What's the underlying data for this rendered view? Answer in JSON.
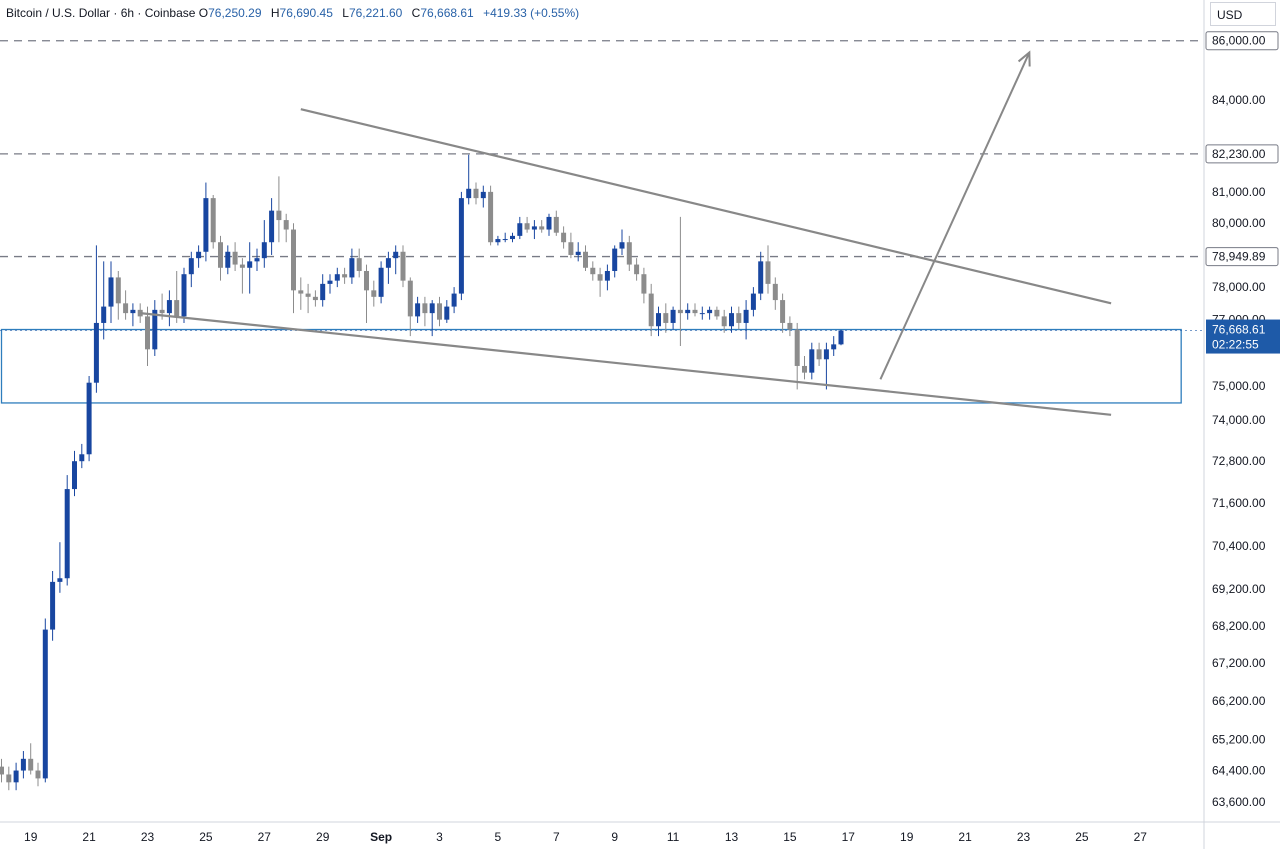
{
  "legend": {
    "symbol": "Bitcoin / U.S. Dollar · 6h · Coinbase",
    "open_label": "O",
    "open": "76,250.29",
    "high_label": "H",
    "high": "76,690.45",
    "low_label": "L",
    "low": "76,221.60",
    "close_label": "C",
    "close": "76,668.61",
    "change": "+419.33 (+0.55%)"
  },
  "currency": "USD",
  "colors": {
    "up": "#1846a0",
    "down": "#8c8c8c",
    "accent": "#1e5aa8",
    "pattern_line": "#888888",
    "zone_border": "#2e7dbd"
  },
  "chart_data": {
    "type": "candlestick",
    "title": "Bitcoin / U.S. Dollar · 6h · Coinbase",
    "y_scale": "log",
    "ylim": [
      63100,
      87400
    ],
    "x_domain": [
      18.0,
      28.2
    ],
    "x_ticks": [
      {
        "x": 19,
        "label": "19"
      },
      {
        "x": 21,
        "label": "21"
      },
      {
        "x": 23,
        "label": "23"
      },
      {
        "x": 25,
        "label": "25"
      },
      {
        "x": 27,
        "label": "27"
      },
      {
        "x": 29,
        "label": "29"
      },
      {
        "x": 31,
        "label": "Sep"
      },
      {
        "x": 33,
        "label": "3"
      },
      {
        "x": 35,
        "label": "5"
      },
      {
        "x": 37,
        "label": "7"
      },
      {
        "x": 39,
        "label": "9"
      },
      {
        "x": 41,
        "label": "11"
      },
      {
        "x": 43,
        "label": "13"
      },
      {
        "x": 45,
        "label": "15"
      },
      {
        "x": 47,
        "label": "17"
      },
      {
        "x": 49,
        "label": "19"
      },
      {
        "x": 51,
        "label": "21"
      },
      {
        "x": 53,
        "label": "23"
      },
      {
        "x": 55,
        "label": "25"
      },
      {
        "x": 57,
        "label": "27"
      }
    ],
    "y_ticks": [
      {
        "v": 84000,
        "label": "84,000.00"
      },
      {
        "v": 81000,
        "label": "81,000.00"
      },
      {
        "v": 80000,
        "label": "80,000.00"
      },
      {
        "v": 78000,
        "label": "78,000.00"
      },
      {
        "v": 77000,
        "label": "77,000.00"
      },
      {
        "v": 75000,
        "label": "75,000.00"
      },
      {
        "v": 74000,
        "label": "74,000.00"
      },
      {
        "v": 72800,
        "label": "72,800.00"
      },
      {
        "v": 71600,
        "label": "71,600.00"
      },
      {
        "v": 70400,
        "label": "70,400.00"
      },
      {
        "v": 69200,
        "label": "69,200.00"
      },
      {
        "v": 68200,
        "label": "68,200.00"
      },
      {
        "v": 67200,
        "label": "67,200.00"
      },
      {
        "v": 66200,
        "label": "66,200.00"
      },
      {
        "v": 65200,
        "label": "65,200.00"
      },
      {
        "v": 64400,
        "label": "64,400.00"
      },
      {
        "v": 63600,
        "label": "63,600.00"
      }
    ],
    "hlines": [
      {
        "v": 86000,
        "label": "86,000.00"
      },
      {
        "v": 82230,
        "label": "82,230.00"
      },
      {
        "v": 78949.89,
        "label": "78,949.89"
      }
    ],
    "last_price": {
      "v": 76668.61,
      "label": "76,668.61",
      "countdown": "02:22:55"
    },
    "zone": {
      "x_start": 18.0,
      "x_end": 58.4,
      "top": 76700,
      "bottom": 74500
    },
    "trendlines": [
      {
        "x1": 28.25,
        "y1": 83700,
        "x2": 56.0,
        "y2": 77500
      },
      {
        "x1": 22.75,
        "y1": 77200,
        "x2": 56.0,
        "y2": 74150
      }
    ],
    "arrow": {
      "x1": 48.1,
      "y1": 75200,
      "x2": 53.2,
      "y2": 85600
    },
    "candles": [
      {
        "x": 18.0,
        "o": 64500,
        "h": 64700,
        "l": 64100,
        "c": 64300
      },
      {
        "x": 18.25,
        "o": 64300,
        "h": 64500,
        "l": 63900,
        "c": 64100
      },
      {
        "x": 18.5,
        "o": 64100,
        "h": 64600,
        "l": 63900,
        "c": 64400
      },
      {
        "x": 18.75,
        "o": 64400,
        "h": 64900,
        "l": 64200,
        "c": 64700
      },
      {
        "x": 19.0,
        "o": 64700,
        "h": 65100,
        "l": 64300,
        "c": 64400
      },
      {
        "x": 19.25,
        "o": 64400,
        "h": 64600,
        "l": 64000,
        "c": 64200
      },
      {
        "x": 19.5,
        "o": 64200,
        "h": 68400,
        "l": 64100,
        "c": 68100
      },
      {
        "x": 19.75,
        "o": 68100,
        "h": 69700,
        "l": 67800,
        "c": 69400
      },
      {
        "x": 20.0,
        "o": 69400,
        "h": 70500,
        "l": 69100,
        "c": 69500
      },
      {
        "x": 20.25,
        "o": 69500,
        "h": 72400,
        "l": 69300,
        "c": 72000
      },
      {
        "x": 20.5,
        "o": 72000,
        "h": 73100,
        "l": 71800,
        "c": 72800
      },
      {
        "x": 20.75,
        "o": 72800,
        "h": 73300,
        "l": 72600,
        "c": 73000
      },
      {
        "x": 21.0,
        "o": 73000,
        "h": 75300,
        "l": 72800,
        "c": 75100
      },
      {
        "x": 21.25,
        "o": 75100,
        "h": 79300,
        "l": 74800,
        "c": 76900
      },
      {
        "x": 21.5,
        "o": 76900,
        "h": 78800,
        "l": 76400,
        "c": 77400
      },
      {
        "x": 21.75,
        "o": 77400,
        "h": 78800,
        "l": 76900,
        "c": 78300
      },
      {
        "x": 22.0,
        "o": 78300,
        "h": 78500,
        "l": 77000,
        "c": 77500
      },
      {
        "x": 22.25,
        "o": 77500,
        "h": 77900,
        "l": 77000,
        "c": 77200
      },
      {
        "x": 22.5,
        "o": 77200,
        "h": 77500,
        "l": 76800,
        "c": 77300
      },
      {
        "x": 22.75,
        "o": 77300,
        "h": 77500,
        "l": 76900,
        "c": 77100
      },
      {
        "x": 23.0,
        "o": 77100,
        "h": 77400,
        "l": 75600,
        "c": 76100
      },
      {
        "x": 23.25,
        "o": 76100,
        "h": 77600,
        "l": 75900,
        "c": 77300
      },
      {
        "x": 23.5,
        "o": 77300,
        "h": 77800,
        "l": 77000,
        "c": 77200
      },
      {
        "x": 23.75,
        "o": 77200,
        "h": 77900,
        "l": 76800,
        "c": 77600
      },
      {
        "x": 24.0,
        "o": 77600,
        "h": 78500,
        "l": 76900,
        "c": 77100
      },
      {
        "x": 24.25,
        "o": 77100,
        "h": 78600,
        "l": 76900,
        "c": 78400
      },
      {
        "x": 24.5,
        "o": 78400,
        "h": 79100,
        "l": 78000,
        "c": 78900
      },
      {
        "x": 24.75,
        "o": 78900,
        "h": 79300,
        "l": 78600,
        "c": 79100
      },
      {
        "x": 25.0,
        "o": 79100,
        "h": 81300,
        "l": 78800,
        "c": 80800
      },
      {
        "x": 25.25,
        "o": 80800,
        "h": 80900,
        "l": 79200,
        "c": 79400
      },
      {
        "x": 25.5,
        "o": 79400,
        "h": 79600,
        "l": 78200,
        "c": 78600
      },
      {
        "x": 25.75,
        "o": 78600,
        "h": 79300,
        "l": 78400,
        "c": 79100
      },
      {
        "x": 26.0,
        "o": 79100,
        "h": 79400,
        "l": 78500,
        "c": 78700
      },
      {
        "x": 26.25,
        "o": 78700,
        "h": 78900,
        "l": 77800,
        "c": 78600
      },
      {
        "x": 26.5,
        "o": 78600,
        "h": 79400,
        "l": 77800,
        "c": 78800
      },
      {
        "x": 26.75,
        "o": 78800,
        "h": 79200,
        "l": 78500,
        "c": 78900
      },
      {
        "x": 27.0,
        "o": 78900,
        "h": 80100,
        "l": 78600,
        "c": 79400
      },
      {
        "x": 27.25,
        "o": 79400,
        "h": 80800,
        "l": 79000,
        "c": 80400
      },
      {
        "x": 27.5,
        "o": 80400,
        "h": 81500,
        "l": 79400,
        "c": 80100
      },
      {
        "x": 27.75,
        "o": 80100,
        "h": 80300,
        "l": 79400,
        "c": 79800
      },
      {
        "x": 28.0,
        "o": 79800,
        "h": 80000,
        "l": 77200,
        "c": 77900
      },
      {
        "x": 28.25,
        "o": 77900,
        "h": 78300,
        "l": 77300,
        "c": 77800
      },
      {
        "x": 28.5,
        "o": 77800,
        "h": 78100,
        "l": 77200,
        "c": 77700
      },
      {
        "x": 28.75,
        "o": 77700,
        "h": 77900,
        "l": 77400,
        "c": 77600
      },
      {
        "x": 29.0,
        "o": 77600,
        "h": 78400,
        "l": 77400,
        "c": 78100
      },
      {
        "x": 29.25,
        "o": 78100,
        "h": 78400,
        "l": 77800,
        "c": 78200
      },
      {
        "x": 29.5,
        "o": 78200,
        "h": 78600,
        "l": 78000,
        "c": 78400
      },
      {
        "x": 29.75,
        "o": 78400,
        "h": 78600,
        "l": 78100,
        "c": 78300
      },
      {
        "x": 30.0,
        "o": 78300,
        "h": 79200,
        "l": 78100,
        "c": 78900
      },
      {
        "x": 30.25,
        "o": 78900,
        "h": 79200,
        "l": 78300,
        "c": 78500
      },
      {
        "x": 30.5,
        "o": 78500,
        "h": 78700,
        "l": 76900,
        "c": 77900
      },
      {
        "x": 30.75,
        "o": 77900,
        "h": 78200,
        "l": 77400,
        "c": 77700
      },
      {
        "x": 31.0,
        "o": 77700,
        "h": 78800,
        "l": 77500,
        "c": 78600
      },
      {
        "x": 31.25,
        "o": 78600,
        "h": 79100,
        "l": 78100,
        "c": 78900
      },
      {
        "x": 31.5,
        "o": 78900,
        "h": 79300,
        "l": 78400,
        "c": 79100
      },
      {
        "x": 31.75,
        "o": 79100,
        "h": 79300,
        "l": 78000,
        "c": 78200
      },
      {
        "x": 32.0,
        "o": 78200,
        "h": 78300,
        "l": 76500,
        "c": 77100
      },
      {
        "x": 32.25,
        "o": 77100,
        "h": 77700,
        "l": 76900,
        "c": 77500
      },
      {
        "x": 32.5,
        "o": 77500,
        "h": 77700,
        "l": 76800,
        "c": 77200
      },
      {
        "x": 32.75,
        "o": 77200,
        "h": 77600,
        "l": 76500,
        "c": 77500
      },
      {
        "x": 33.0,
        "o": 77500,
        "h": 77700,
        "l": 76800,
        "c": 77000
      },
      {
        "x": 33.25,
        "o": 77000,
        "h": 77600,
        "l": 76900,
        "c": 77400
      },
      {
        "x": 33.5,
        "o": 77400,
        "h": 78000,
        "l": 77200,
        "c": 77800
      },
      {
        "x": 33.75,
        "o": 77800,
        "h": 81000,
        "l": 77600,
        "c": 80800
      },
      {
        "x": 34.0,
        "o": 80800,
        "h": 82200,
        "l": 80600,
        "c": 81100
      },
      {
        "x": 34.25,
        "o": 81100,
        "h": 81300,
        "l": 80600,
        "c": 80800
      },
      {
        "x": 34.5,
        "o": 80800,
        "h": 81200,
        "l": 80500,
        "c": 81000
      },
      {
        "x": 34.75,
        "o": 81000,
        "h": 81200,
        "l": 79300,
        "c": 79400
      },
      {
        "x": 35.0,
        "o": 79400,
        "h": 79600,
        "l": 79300,
        "c": 79500
      },
      {
        "x": 35.25,
        "o": 79500,
        "h": 79700,
        "l": 79400,
        "c": 79500
      },
      {
        "x": 35.5,
        "o": 79500,
        "h": 79700,
        "l": 79400,
        "c": 79600
      },
      {
        "x": 35.75,
        "o": 79600,
        "h": 80200,
        "l": 79500,
        "c": 80000
      },
      {
        "x": 36.0,
        "o": 80000,
        "h": 80200,
        "l": 79700,
        "c": 79800
      },
      {
        "x": 36.25,
        "o": 79800,
        "h": 80100,
        "l": 79500,
        "c": 79900
      },
      {
        "x": 36.5,
        "o": 79900,
        "h": 80100,
        "l": 79700,
        "c": 79800
      },
      {
        "x": 36.75,
        "o": 79800,
        "h": 80300,
        "l": 79600,
        "c": 80200
      },
      {
        "x": 37.0,
        "o": 80200,
        "h": 80400,
        "l": 79600,
        "c": 79700
      },
      {
        "x": 37.25,
        "o": 79700,
        "h": 79900,
        "l": 79200,
        "c": 79400
      },
      {
        "x": 37.5,
        "o": 79400,
        "h": 79700,
        "l": 78900,
        "c": 79000
      },
      {
        "x": 37.75,
        "o": 79000,
        "h": 79400,
        "l": 78800,
        "c": 79100
      },
      {
        "x": 38.0,
        "o": 79100,
        "h": 79300,
        "l": 78500,
        "c": 78600
      },
      {
        "x": 38.25,
        "o": 78600,
        "h": 78800,
        "l": 78200,
        "c": 78400
      },
      {
        "x": 38.5,
        "o": 78400,
        "h": 78600,
        "l": 77700,
        "c": 78200
      },
      {
        "x": 38.75,
        "o": 78200,
        "h": 78700,
        "l": 77900,
        "c": 78500
      },
      {
        "x": 39.0,
        "o": 78500,
        "h": 79300,
        "l": 78300,
        "c": 79200
      },
      {
        "x": 39.25,
        "o": 79200,
        "h": 79800,
        "l": 79000,
        "c": 79400
      },
      {
        "x": 39.5,
        "o": 79400,
        "h": 79600,
        "l": 78500,
        "c": 78700
      },
      {
        "x": 39.75,
        "o": 78700,
        "h": 78900,
        "l": 78200,
        "c": 78400
      },
      {
        "x": 40.0,
        "o": 78400,
        "h": 78600,
        "l": 77500,
        "c": 77800
      },
      {
        "x": 40.25,
        "o": 77800,
        "h": 78100,
        "l": 76500,
        "c": 76800
      },
      {
        "x": 40.5,
        "o": 76800,
        "h": 77400,
        "l": 76500,
        "c": 77200
      },
      {
        "x": 40.75,
        "o": 77200,
        "h": 77500,
        "l": 76600,
        "c": 76900
      },
      {
        "x": 41.0,
        "o": 76900,
        "h": 77400,
        "l": 76700,
        "c": 77300
      },
      {
        "x": 41.25,
        "o": 77300,
        "h": 80200,
        "l": 76200,
        "c": 77200
      },
      {
        "x": 41.5,
        "o": 77200,
        "h": 77500,
        "l": 77000,
        "c": 77300
      },
      {
        "x": 41.75,
        "o": 77300,
        "h": 77500,
        "l": 77100,
        "c": 77200
      },
      {
        "x": 42.0,
        "o": 77200,
        "h": 77400,
        "l": 77000,
        "c": 77200
      },
      {
        "x": 42.25,
        "o": 77200,
        "h": 77400,
        "l": 77000,
        "c": 77300
      },
      {
        "x": 42.5,
        "o": 77300,
        "h": 77400,
        "l": 77000,
        "c": 77100
      },
      {
        "x": 42.75,
        "o": 77100,
        "h": 77300,
        "l": 76600,
        "c": 76800
      },
      {
        "x": 43.0,
        "o": 76800,
        "h": 77400,
        "l": 76600,
        "c": 77200
      },
      {
        "x": 43.25,
        "o": 77200,
        "h": 77400,
        "l": 76700,
        "c": 76900
      },
      {
        "x": 43.5,
        "o": 76900,
        "h": 77600,
        "l": 76400,
        "c": 77300
      },
      {
        "x": 43.75,
        "o": 77300,
        "h": 78000,
        "l": 77100,
        "c": 77800
      },
      {
        "x": 44.0,
        "o": 77800,
        "h": 79100,
        "l": 77600,
        "c": 78800
      },
      {
        "x": 44.25,
        "o": 78800,
        "h": 79300,
        "l": 77800,
        "c": 78100
      },
      {
        "x": 44.5,
        "o": 78100,
        "h": 78300,
        "l": 77300,
        "c": 77600
      },
      {
        "x": 44.75,
        "o": 77600,
        "h": 77800,
        "l": 76600,
        "c": 76900
      },
      {
        "x": 45.0,
        "o": 76900,
        "h": 77100,
        "l": 76500,
        "c": 76700
      },
      {
        "x": 45.25,
        "o": 76700,
        "h": 76900,
        "l": 74900,
        "c": 75600
      },
      {
        "x": 45.5,
        "o": 75600,
        "h": 75900,
        "l": 75200,
        "c": 75400
      },
      {
        "x": 45.75,
        "o": 75400,
        "h": 76300,
        "l": 75200,
        "c": 76100
      },
      {
        "x": 46.0,
        "o": 76100,
        "h": 76300,
        "l": 75600,
        "c": 75800
      },
      {
        "x": 46.25,
        "o": 75800,
        "h": 76300,
        "l": 74900,
        "c": 76100
      },
      {
        "x": 46.5,
        "o": 76100,
        "h": 76500,
        "l": 75900,
        "c": 76250
      },
      {
        "x": 46.75,
        "o": 76250.29,
        "h": 76690.45,
        "l": 76221.6,
        "c": 76668.61
      }
    ]
  }
}
